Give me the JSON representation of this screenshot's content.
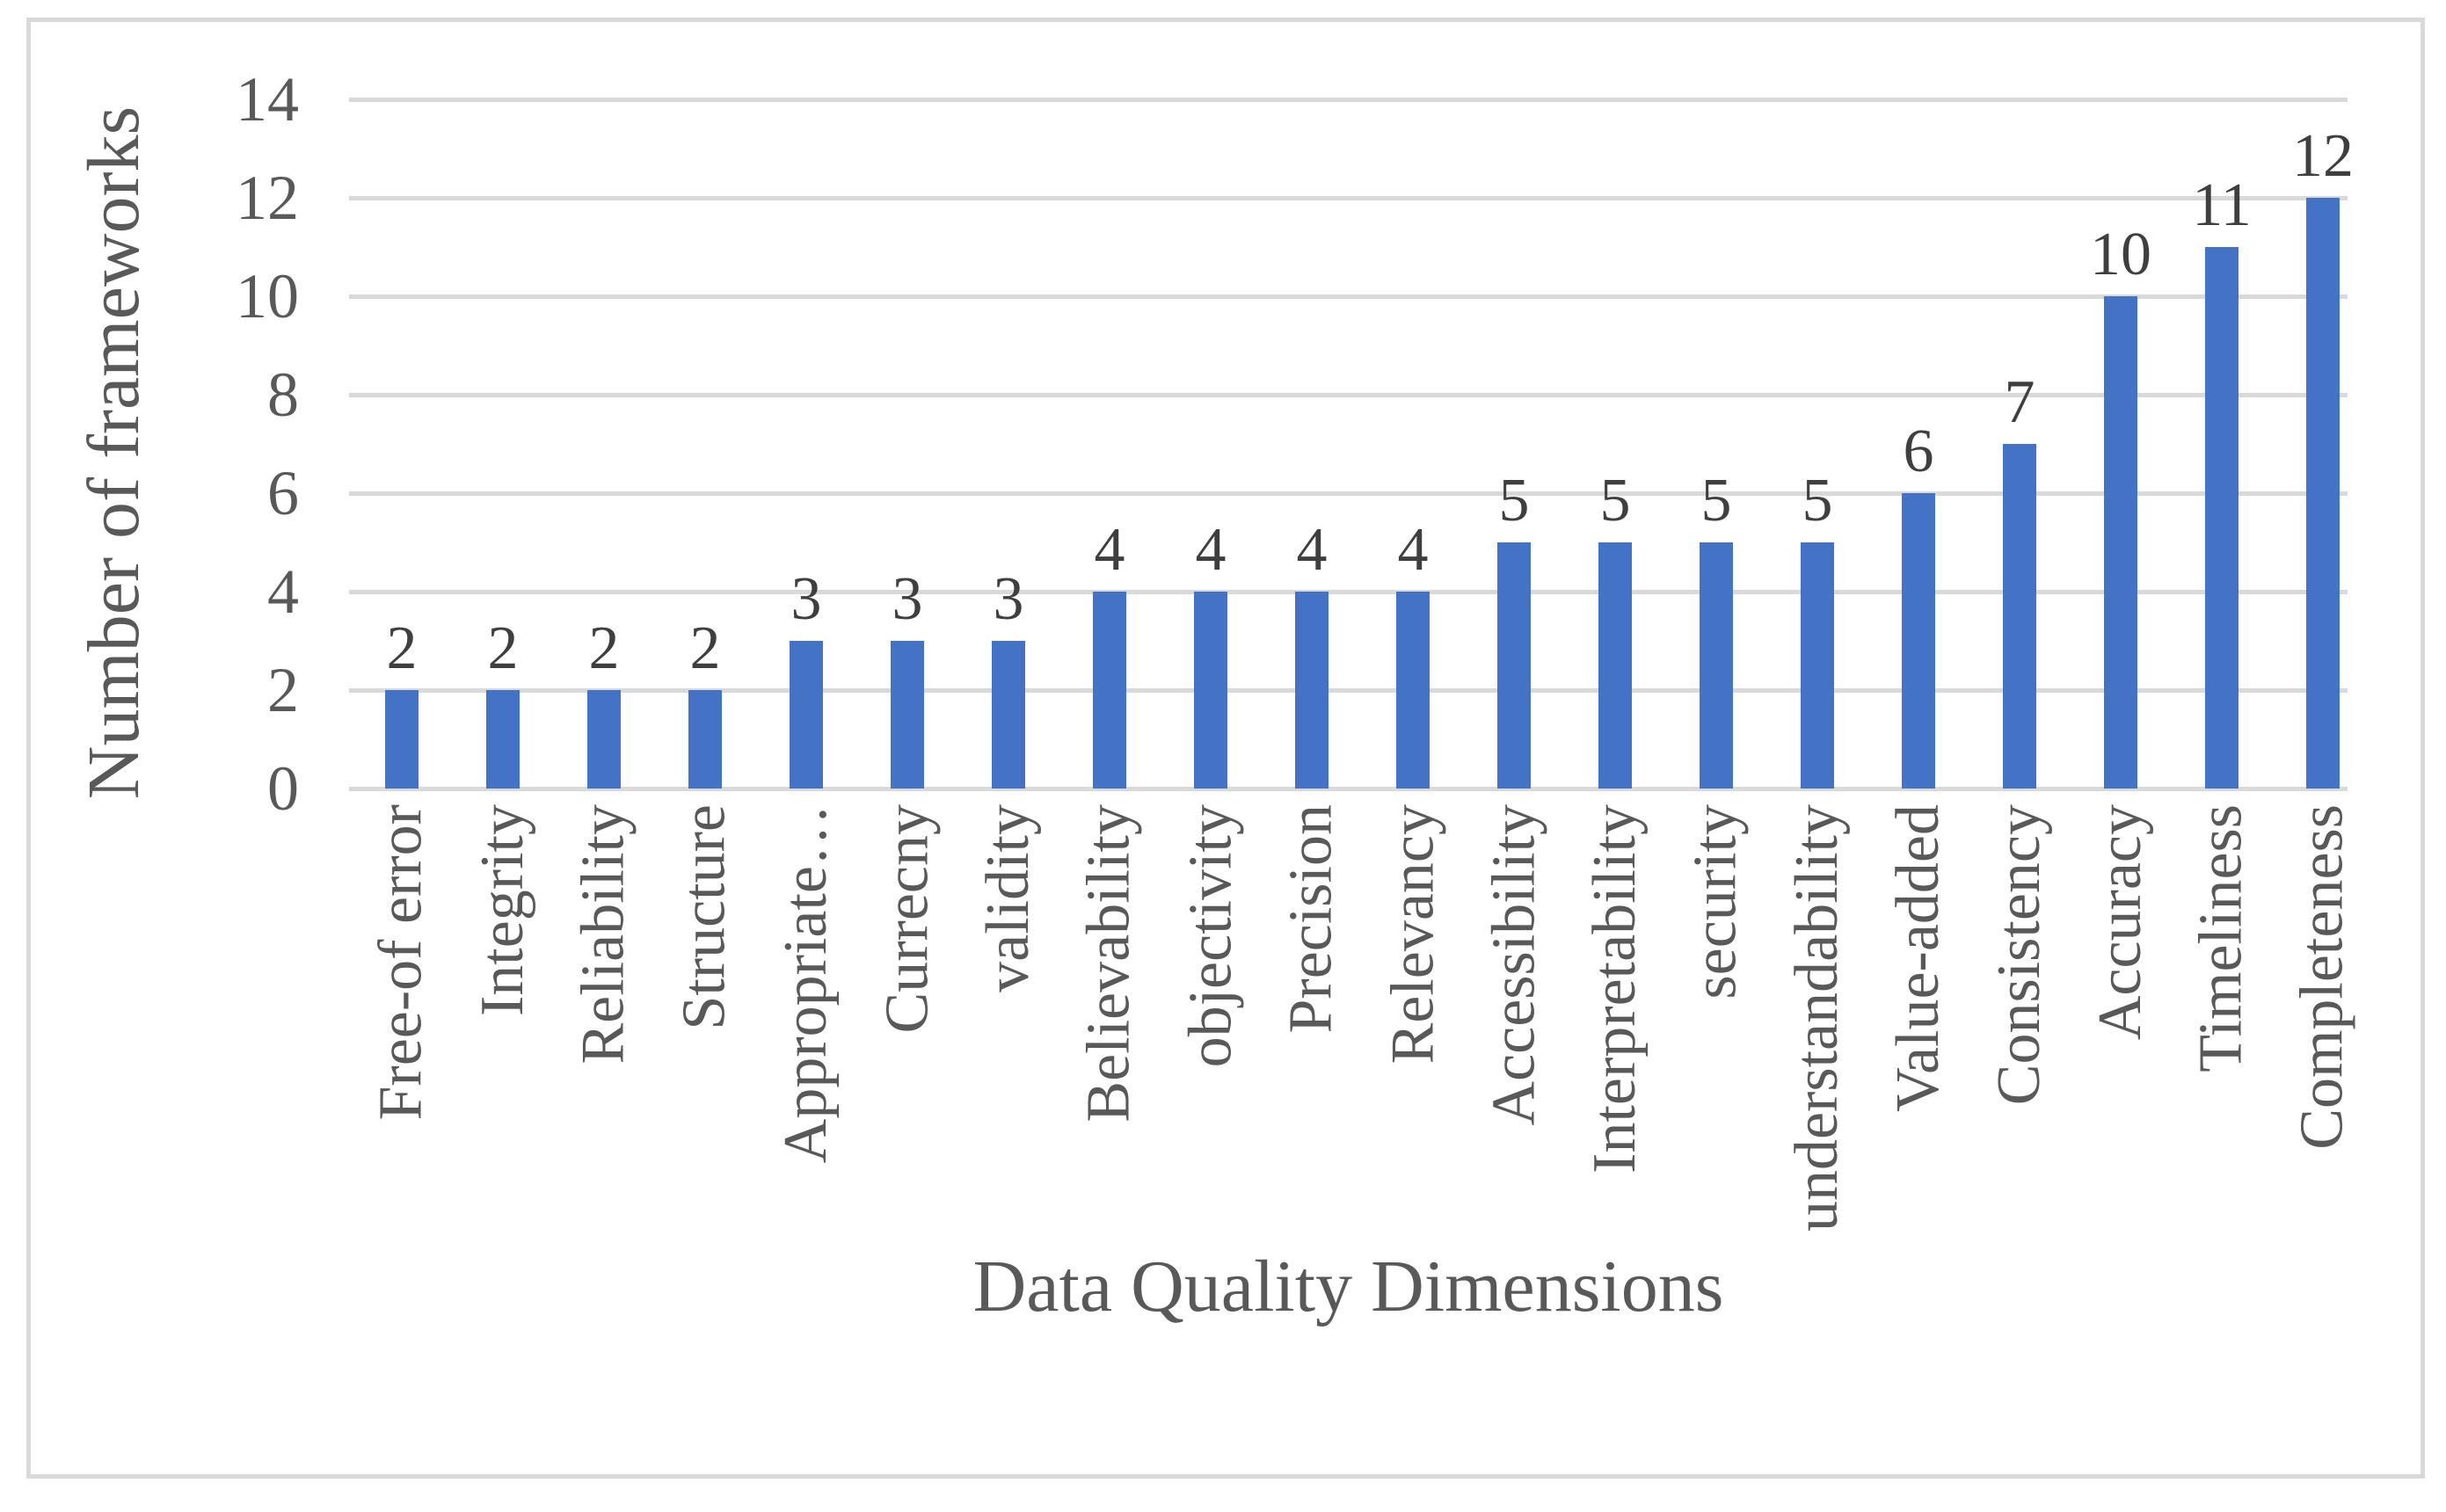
{
  "chart_data": {
    "type": "bar",
    "title": "",
    "xlabel": "Data Quality Dimensions",
    "ylabel": "Number of frameworks",
    "categories": [
      "Free-of error",
      "Integrity",
      "Reliability",
      "Structure",
      "Appropriate…",
      "Currecny",
      "validity",
      "Believability",
      "objectivity",
      "Precision",
      "Relevancy",
      "Accessibility",
      "Interpretability",
      "security",
      "understandability",
      "Value-added",
      "Consistency",
      "Accuracy",
      "Timeliness",
      "Completeness"
    ],
    "values": [
      2,
      2,
      2,
      2,
      3,
      3,
      3,
      4,
      4,
      4,
      4,
      5,
      5,
      5,
      5,
      6,
      7,
      10,
      11,
      12
    ],
    "data_labels_shown": true,
    "yticks": [
      0,
      2,
      4,
      6,
      8,
      10,
      12,
      14
    ],
    "ylim": [
      0,
      14
    ],
    "grid": true,
    "legend": false,
    "colors": {
      "bar": "#4472C4",
      "gridline": "#D9D9D9",
      "axis_text": "#595959",
      "data_label_text": "#3F3F3F",
      "border": "#D9D9D9"
    }
  }
}
